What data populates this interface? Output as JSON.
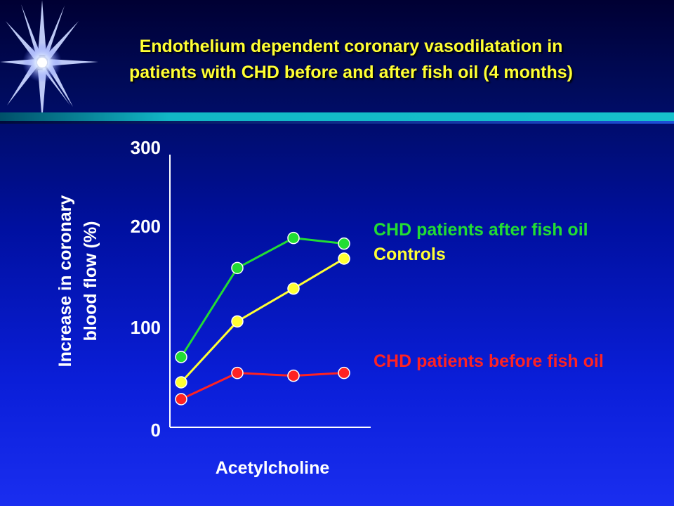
{
  "title": {
    "line1": "Endothelium dependent coronary vasodilatation in",
    "line2": "patients with CHD before and after fish oil (4 months)"
  },
  "colors": {
    "title": "#ffff33",
    "after_fish_oil": "#22dd33",
    "controls": "#ffff33",
    "before_fish_oil": "#ff2222",
    "axis": "#ffffff"
  },
  "chart_data": {
    "type": "line",
    "title": "Endothelium dependent coronary vasodilatation in patients with CHD before and after fish oil (4 months)",
    "xlabel": "Acetylcholine",
    "ylabel_line1": "Increase in coronary",
    "ylabel_line2": "blood flow (%)",
    "ylim": [
      0,
      300
    ],
    "yticks": [
      "0",
      "100",
      "200",
      "300"
    ],
    "x": [
      1,
      2,
      3,
      4
    ],
    "grid": false,
    "legend_placement": "right",
    "series": [
      {
        "name": "CHD patients after fish oil",
        "color_key": "after_fish_oil",
        "values": [
          75,
          170,
          202,
          196
        ]
      },
      {
        "name": "Controls",
        "color_key": "controls",
        "values": [
          48,
          113,
          148,
          180
        ]
      },
      {
        "name": "CHD patients before fish oil",
        "color_key": "before_fish_oil",
        "values": [
          30,
          58,
          55,
          58
        ]
      }
    ]
  }
}
